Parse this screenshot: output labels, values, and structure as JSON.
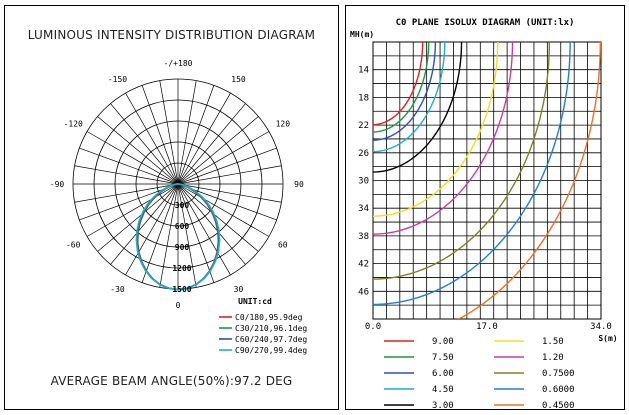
{
  "left": {
    "title": "LUMINOUS INTENSITY DISTRIBUTION DIAGRAM",
    "footer": "AVERAGE BEAM ANGLE(50%):97.2 DEG",
    "unit_label": "UNIT:cd"
  },
  "right": {
    "title": "C0 PLANE ISOLUX DIAGRAM (UNIT:lx)",
    "y_axis_label": "MH(m)",
    "x_axis_label": "S(m)"
  },
  "chart_data": [
    {
      "type": "polar",
      "title": "LUMINOUS INTENSITY DISTRIBUTION DIAGRAM",
      "angle_labels": [
        "-/+180",
        "150",
        "120",
        "90",
        "60",
        "30",
        "0",
        "-30",
        "-60",
        "-90",
        "-120",
        "-150"
      ],
      "radial_ticks": [
        300,
        600,
        900,
        1200,
        1500
      ],
      "radial_labels": [
        "300",
        "600",
        "900",
        "1200",
        "1500"
      ],
      "unit": "UNIT:cd",
      "legend_placement": "bottom-right",
      "series": [
        {
          "name": "C0/180,95.9deg",
          "color": "#e02020",
          "beam_angle": 95.9
        },
        {
          "name": "C30/210,96.1deg",
          "color": "#1a9a3a",
          "beam_angle": 96.1
        },
        {
          "name": "C60/240,97.7deg",
          "color": "#2a4fc8",
          "beam_angle": 97.7
        },
        {
          "name": "C90/270,99.4deg",
          "color": "#19b2c6",
          "beam_angle": 99.4
        }
      ],
      "curve_angles_deg": [
        0,
        5,
        10,
        15,
        20,
        25,
        30,
        35,
        40,
        45,
        50,
        55,
        60,
        65,
        70,
        75,
        80,
        85,
        90
      ],
      "curve_values_cd": [
        1510,
        1495,
        1460,
        1400,
        1320,
        1225,
        1120,
        1005,
        885,
        760,
        635,
        510,
        385,
        270,
        170,
        95,
        45,
        15,
        0
      ],
      "average_beam_angle": "AVERAGE BEAM ANGLE(50%):97.2 DEG"
    },
    {
      "type": "line",
      "title": "C0 PLANE ISOLUX DIAGRAM (UNIT:lx)",
      "ylabel": "MH(m)",
      "xlabel": "S(m)",
      "x_ticks": [
        "0.0",
        "17.0",
        "34.0"
      ],
      "xlim": [
        0,
        34
      ],
      "ylim": [
        10,
        50
      ],
      "y_ticks": [
        14,
        18,
        22,
        26,
        30,
        34,
        38,
        42,
        46
      ],
      "y_inverted": true,
      "grid": true,
      "legend_placement": "bottom",
      "series": [
        {
          "name": "9.00",
          "color": "#e02020",
          "width": 7.4
        },
        {
          "name": "7.50",
          "color": "#1a9a3a",
          "width": 8.3
        },
        {
          "name": "6.00",
          "color": "#2a4fc8",
          "width": 9.3
        },
        {
          "name": "4.50",
          "color": "#19b2c6",
          "width": 10.7
        },
        {
          "name": "3.00",
          "color": "#000000",
          "width": 13.2
        },
        {
          "name": "1.50",
          "color": "#f0e020",
          "width": 18.6
        },
        {
          "name": "1.20",
          "color": "#c83ca8",
          "width": 20.8
        },
        {
          "name": "0.7500",
          "color": "#808020",
          "width": 26.3
        },
        {
          "name": "0.6000",
          "color": "#2080d0",
          "width": 29.4
        },
        {
          "name": "0.4500",
          "color": "#f07020",
          "width": 33.9
        }
      ]
    }
  ]
}
